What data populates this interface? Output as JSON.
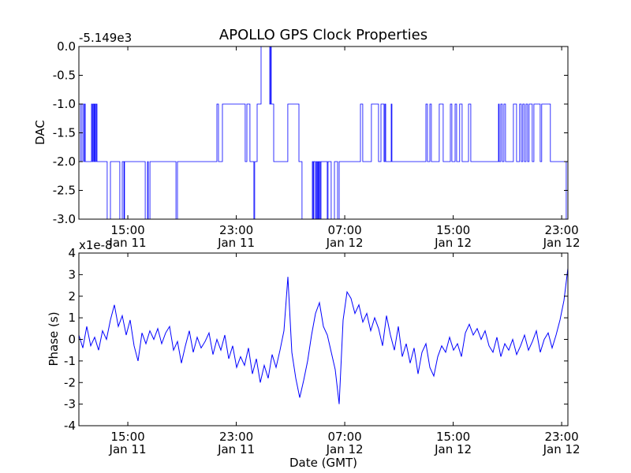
{
  "chart_data": [
    {
      "type": "line",
      "title": "APOLLO GPS Clock Properties",
      "ylabel": "DAC",
      "xlabel": "",
      "offset_label": "-5.149e3",
      "x_units": "hours since Jan 11 00:00 GMT",
      "xlim": [
        11.39,
        47.46
      ],
      "ylim": [
        -3.0,
        0.0
      ],
      "y_ticks": [
        0.0,
        -0.5,
        -1.0,
        -1.5,
        -2.0,
        -2.5,
        -3.0
      ],
      "y_tick_labels": [
        "0.0",
        "-0.5",
        "-1.0",
        "-1.5",
        "-2.0",
        "-2.5",
        "-3.0"
      ],
      "x_ticks": [
        15,
        23,
        31,
        39,
        47
      ],
      "x_tick_labels": [
        [
          "15:00",
          "Jan 11"
        ],
        [
          "23:00",
          "Jan 11"
        ],
        [
          "07:00",
          "Jan 12"
        ],
        [
          "15:00",
          "Jan 12"
        ],
        [
          "23:00",
          "Jan 12"
        ]
      ],
      "color": "#0000ff",
      "step_points": [
        [
          11.39,
          -1
        ],
        [
          11.51,
          -2
        ],
        [
          11.62,
          -1
        ],
        [
          11.74,
          -2
        ],
        [
          11.8,
          -1
        ],
        [
          11.86,
          -2
        ],
        [
          12.32,
          -1
        ],
        [
          12.38,
          -2
        ],
        [
          12.44,
          -1
        ],
        [
          12.5,
          -2
        ],
        [
          12.55,
          -1
        ],
        [
          12.61,
          -2
        ],
        [
          12.67,
          -1
        ],
        [
          12.73,
          -2
        ],
        [
          13.48,
          -3
        ],
        [
          13.72,
          -2
        ],
        [
          14.41,
          -3
        ],
        [
          14.59,
          -2
        ],
        [
          14.71,
          -3
        ],
        [
          14.76,
          -2
        ],
        [
          16.28,
          -3
        ],
        [
          16.45,
          -2
        ],
        [
          16.51,
          -3
        ],
        [
          16.63,
          -2
        ],
        [
          18.55,
          -3
        ],
        [
          18.66,
          -2
        ],
        [
          21.57,
          -1
        ],
        [
          21.69,
          -2
        ],
        [
          21.98,
          -1
        ],
        [
          23.66,
          -2
        ],
        [
          23.78,
          -1
        ],
        [
          24.01,
          -2
        ],
        [
          24.3,
          -3
        ],
        [
          24.36,
          -2
        ],
        [
          24.54,
          -1
        ],
        [
          24.83,
          0
        ],
        [
          25.47,
          -1
        ],
        [
          25.53,
          0
        ],
        [
          25.58,
          -1
        ],
        [
          25.76,
          -2
        ],
        [
          26.8,
          -1
        ],
        [
          27.62,
          -2
        ],
        [
          27.85,
          -3
        ],
        [
          28.61,
          -2
        ],
        [
          28.67,
          -3
        ],
        [
          28.72,
          -2
        ],
        [
          28.84,
          -3
        ],
        [
          28.9,
          -2
        ],
        [
          28.96,
          -3
        ],
        [
          29.02,
          -2
        ],
        [
          29.07,
          -3
        ],
        [
          29.13,
          -2
        ],
        [
          29.19,
          -3
        ],
        [
          29.25,
          -2
        ],
        [
          29.71,
          -3
        ],
        [
          29.77,
          -2
        ],
        [
          30.0,
          -3
        ],
        [
          30.24,
          -2
        ],
        [
          30.47,
          -3
        ],
        [
          30.59,
          -2
        ],
        [
          30.94,
          -2
        ],
        [
          32.16,
          -1
        ],
        [
          32.33,
          -2
        ],
        [
          32.97,
          -1
        ],
        [
          33.49,
          -2
        ],
        [
          33.67,
          -1
        ],
        [
          33.9,
          -2
        ],
        [
          33.96,
          -1
        ],
        [
          34.02,
          -2
        ],
        [
          34.43,
          -1
        ],
        [
          34.48,
          -2
        ],
        [
          36.99,
          -1
        ],
        [
          37.1,
          -2
        ],
        [
          37.28,
          -1
        ],
        [
          37.39,
          -2
        ],
        [
          37.97,
          -1
        ],
        [
          38.26,
          -2
        ],
        [
          38.79,
          -1
        ],
        [
          38.9,
          -2
        ],
        [
          39.14,
          -1
        ],
        [
          39.25,
          -2
        ],
        [
          39.48,
          -1
        ],
        [
          39.66,
          -2
        ],
        [
          40.13,
          -1
        ],
        [
          40.3,
          -2
        ],
        [
          42.34,
          -1
        ],
        [
          42.39,
          -2
        ],
        [
          42.51,
          -1
        ],
        [
          42.62,
          -2
        ],
        [
          42.74,
          -1
        ],
        [
          42.86,
          -2
        ],
        [
          43.44,
          -1
        ],
        [
          43.67,
          -2
        ],
        [
          43.9,
          -1
        ],
        [
          44.02,
          -2
        ],
        [
          44.13,
          -1
        ],
        [
          44.25,
          -2
        ],
        [
          44.37,
          -1
        ],
        [
          44.49,
          -2
        ],
        [
          44.6,
          -1
        ],
        [
          44.83,
          -2
        ],
        [
          44.95,
          -1
        ],
        [
          45.42,
          -2
        ],
        [
          45.53,
          -1
        ],
        [
          46.17,
          -2
        ],
        [
          46.29,
          -2
        ],
        [
          47.28,
          -2
        ],
        [
          47.34,
          -3
        ]
      ]
    },
    {
      "type": "line",
      "ylabel": "Phase (s)",
      "xlabel": "Date (GMT)",
      "offset_label": "x1e-8",
      "x_units": "hours since Jan 11 00:00 GMT",
      "xlim": [
        11.39,
        47.46
      ],
      "ylim": [
        -4,
        4
      ],
      "y_ticks": [
        4,
        3,
        2,
        1,
        0,
        -1,
        -2,
        -3,
        -4
      ],
      "y_tick_labels": [
        "4",
        "3",
        "2",
        "1",
        "0",
        "-1",
        "-2",
        "-3",
        "-4"
      ],
      "x_ticks": [
        15,
        23,
        31,
        39,
        47
      ],
      "x_tick_labels": [
        [
          "15:00",
          "Jan 11"
        ],
        [
          "23:00",
          "Jan 11"
        ],
        [
          "07:00",
          "Jan 12"
        ],
        [
          "15:00",
          "Jan 12"
        ],
        [
          "23:00",
          "Jan 12"
        ]
      ],
      "color": "#0000ff",
      "t_start": 11.39,
      "t_step": 0.2909,
      "values": [
        0.2,
        -0.4,
        0.6,
        -0.3,
        0.1,
        -0.5,
        0.4,
        0.0,
        0.9,
        1.6,
        0.6,
        1.1,
        0.2,
        0.9,
        -0.3,
        -1.0,
        0.3,
        -0.2,
        0.4,
        0.0,
        0.5,
        -0.2,
        0.3,
        0.6,
        -0.5,
        -0.1,
        -1.1,
        -0.3,
        0.4,
        -0.6,
        0.1,
        -0.4,
        -0.1,
        0.3,
        -0.7,
        0.0,
        -0.5,
        0.2,
        -0.9,
        -0.3,
        -1.3,
        -0.8,
        -1.2,
        -0.4,
        -1.6,
        -0.9,
        -2.0,
        -1.2,
        -1.8,
        -0.7,
        -1.3,
        -0.5,
        0.4,
        2.9,
        -0.6,
        -1.8,
        -2.7,
        -1.9,
        -1.0,
        0.2,
        1.2,
        1.7,
        0.6,
        0.2,
        -0.6,
        -1.4,
        -3.0,
        0.9,
        2.2,
        1.9,
        1.2,
        1.6,
        0.8,
        1.2,
        0.4,
        1.0,
        0.5,
        -0.3,
        1.1,
        0.2,
        -0.5,
        0.6,
        -0.8,
        -0.2,
        -1.1,
        -0.4,
        -1.6,
        -0.6,
        -0.2,
        -1.3,
        -1.7,
        -0.8,
        -0.3,
        -0.6,
        0.1,
        -0.5,
        -0.2,
        -0.8,
        0.3,
        0.7,
        0.2,
        0.5,
        0.0,
        0.4,
        -0.3,
        -0.6,
        0.1,
        -0.8,
        -0.2,
        -0.5,
        0.0,
        -0.7,
        -0.3,
        0.2,
        -0.5,
        -0.1,
        0.4,
        -0.6,
        0.0,
        0.3,
        -0.4,
        0.2,
        0.9,
        1.8,
        3.3
      ]
    }
  ]
}
